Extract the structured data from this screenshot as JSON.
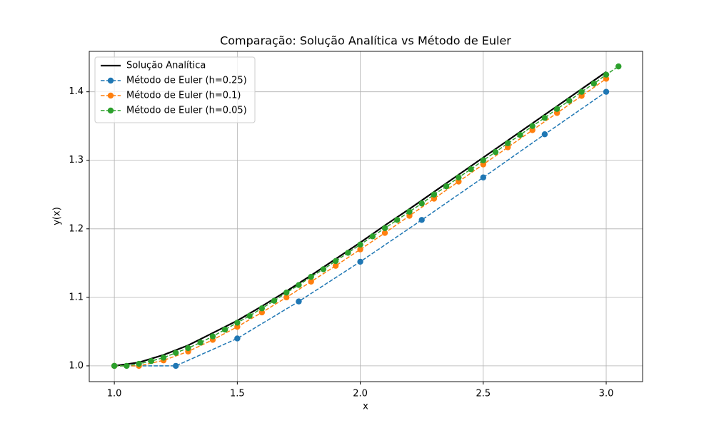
{
  "chart_data": {
    "type": "line",
    "title": "Comparação: Solução Analítica vs Método de Euler",
    "xlabel": "x",
    "ylabel": "y(x)",
    "xlim": [
      0.898,
      3.148
    ],
    "ylim": [
      0.977,
      1.459
    ],
    "xticks": [
      {
        "value": 1,
        "label": "1.0"
      },
      1.5,
      {
        "value": 2,
        "label": "2.0"
      },
      2.5,
      {
        "value": 3,
        "label": "3.0"
      }
    ],
    "yticks": [
      {
        "value": 1,
        "label": "1.0"
      },
      1.1,
      1.2,
      1.3,
      1.4
    ],
    "grid": true,
    "legend": "upper left",
    "series": [
      {
        "name": "Solução Analítica",
        "color": "#000000",
        "style": "solid",
        "marker": false,
        "x": [
          1.0,
          1.1,
          1.2,
          1.3,
          1.4,
          1.5,
          1.6,
          1.7,
          1.8,
          1.9,
          2.0,
          2.1,
          2.2,
          2.3,
          2.4,
          2.5,
          2.6,
          2.7,
          2.8,
          2.9,
          3.0
        ],
        "values": [
          1.0,
          1.005,
          1.016,
          1.03,
          1.048,
          1.066,
          1.087,
          1.109,
          1.132,
          1.156,
          1.18,
          1.205,
          1.229,
          1.254,
          1.279,
          1.304,
          1.329,
          1.354,
          1.379,
          1.404,
          1.429
        ]
      },
      {
        "name": "Método de Euler (h=0.25)",
        "color": "#1f77b4",
        "style": "dashed",
        "marker": true,
        "x": [
          1.0,
          1.25,
          1.5,
          1.75,
          2.0,
          2.25,
          2.5,
          2.75,
          3.0
        ],
        "values": [
          1.0,
          1.0,
          1.04,
          1.094,
          1.152,
          1.213,
          1.275,
          1.338,
          1.4
        ]
      },
      {
        "name": "Método de Euler (h=0.1)",
        "color": "#ff7f0e",
        "style": "dashed",
        "marker": true,
        "x": [
          1.0,
          1.1,
          1.2,
          1.3,
          1.4,
          1.5,
          1.6,
          1.7,
          1.8,
          1.9,
          2.0,
          2.1,
          2.2,
          2.3,
          2.4,
          2.5,
          2.6,
          2.7,
          2.8,
          2.9,
          3.0
        ],
        "values": [
          1.0,
          1.0,
          1.008,
          1.021,
          1.038,
          1.057,
          1.078,
          1.1,
          1.123,
          1.146,
          1.17,
          1.194,
          1.219,
          1.244,
          1.269,
          1.294,
          1.319,
          1.344,
          1.369,
          1.394,
          1.419
        ]
      },
      {
        "name": "Método de Euler (h=0.05)",
        "color": "#2ca02c",
        "style": "dashed",
        "marker": true,
        "x": [
          1.0,
          1.05,
          1.1,
          1.15,
          1.2,
          1.25,
          1.3,
          1.35,
          1.4,
          1.45,
          1.5,
          1.55,
          1.6,
          1.65,
          1.7,
          1.75,
          1.8,
          1.85,
          1.9,
          1.95,
          2.0,
          2.05,
          2.1,
          2.15,
          2.2,
          2.25,
          2.3,
          2.35,
          2.4,
          2.45,
          2.5,
          2.55,
          2.6,
          2.65,
          2.7,
          2.75,
          2.8,
          2.85,
          2.9,
          2.95,
          3.0,
          3.05
        ],
        "values": [
          1.0,
          1.0,
          1.003,
          1.007,
          1.012,
          1.019,
          1.026,
          1.034,
          1.043,
          1.053,
          1.063,
          1.073,
          1.084,
          1.095,
          1.107,
          1.118,
          1.13,
          1.141,
          1.153,
          1.165,
          1.177,
          1.189,
          1.201,
          1.213,
          1.225,
          1.237,
          1.25,
          1.262,
          1.275,
          1.287,
          1.3,
          1.312,
          1.325,
          1.337,
          1.35,
          1.362,
          1.375,
          1.387,
          1.4,
          1.412,
          1.425,
          1.437
        ]
      }
    ]
  }
}
